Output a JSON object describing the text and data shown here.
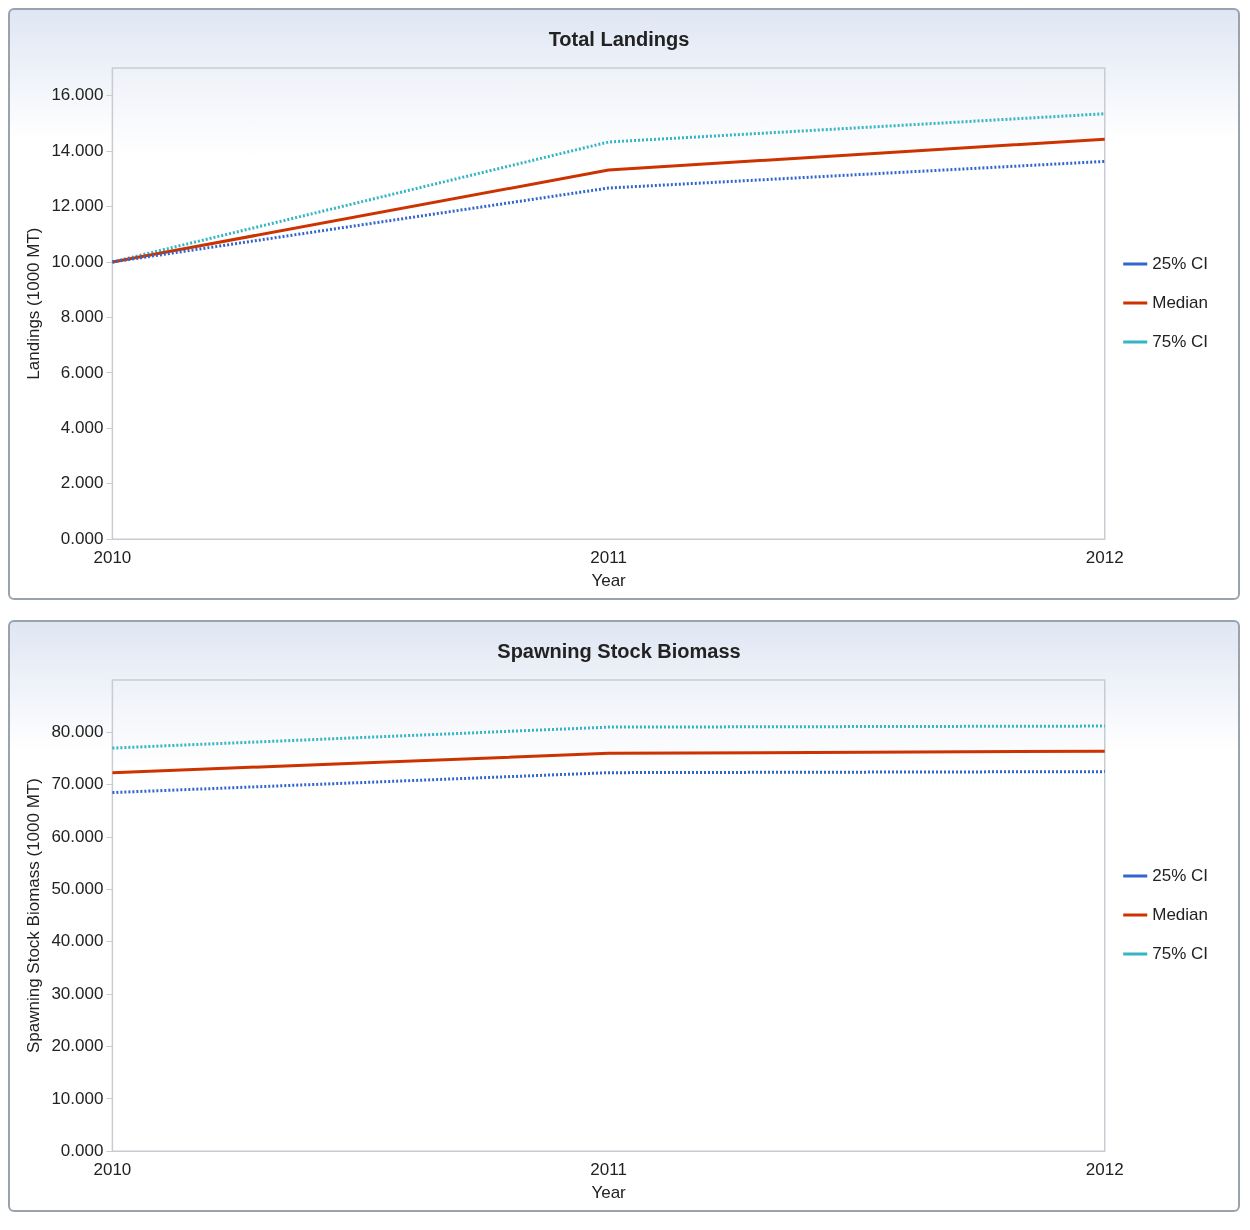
{
  "chart_data": [
    {
      "type": "line",
      "title": "Total Landings",
      "xlabel": "Year",
      "ylabel": "Landings (1000 MT)",
      "categories": [
        "2010",
        "2011",
        "2012"
      ],
      "series": [
        {
          "name": "25% CI",
          "color": "#3366cc",
          "line_style": "dotted",
          "values": [
            10.0,
            12.67,
            13.63
          ]
        },
        {
          "name": "Median",
          "color": "#cc3300",
          "line_style": "solid",
          "values": [
            10.0,
            13.32,
            14.43
          ]
        },
        {
          "name": "75% CI",
          "color": "#33b5c4",
          "line_style": "dotted",
          "values": [
            10.0,
            14.33,
            15.35
          ]
        }
      ],
      "ylim": [
        0,
        17
      ],
      "yticks": [
        {
          "value": 0,
          "label": "0.000"
        },
        {
          "value": 2,
          "label": "2.000"
        },
        {
          "value": 4,
          "label": "4.000"
        },
        {
          "value": 6,
          "label": "6.000"
        },
        {
          "value": 8,
          "label": "8.000"
        },
        {
          "value": 10,
          "label": "10.000"
        },
        {
          "value": 12,
          "label": "12.000"
        },
        {
          "value": 14,
          "label": "14.000"
        },
        {
          "value": 16,
          "label": "16.000"
        }
      ],
      "grid": false,
      "legend": "right",
      "marker": "none"
    },
    {
      "type": "line",
      "title": "Spawning Stock Biomass",
      "xlabel": "Year",
      "ylabel": "Spawning Stock Biomass (1000 MT)",
      "categories": [
        "2010",
        "2011",
        "2012"
      ],
      "series": [
        {
          "name": "25% CI",
          "color": "#3366cc",
          "line_style": "dotted",
          "values": [
            68.5,
            72.3,
            72.5
          ]
        },
        {
          "name": "Median",
          "color": "#cc3300",
          "line_style": "solid",
          "values": [
            72.3,
            76.0,
            76.4
          ]
        },
        {
          "name": "75% CI",
          "color": "#33b5c4",
          "line_style": "dotted",
          "values": [
            77.0,
            81.0,
            81.2
          ]
        }
      ],
      "ylim": [
        0,
        90
      ],
      "yticks": [
        {
          "value": 0,
          "label": "0.000"
        },
        {
          "value": 10,
          "label": "10.000"
        },
        {
          "value": 20,
          "label": "20.000"
        },
        {
          "value": 30,
          "label": "30.000"
        },
        {
          "value": 40,
          "label": "40.000"
        },
        {
          "value": 50,
          "label": "50.000"
        },
        {
          "value": 60,
          "label": "60.000"
        },
        {
          "value": 70,
          "label": "70.000"
        },
        {
          "value": 80,
          "label": "80.000"
        }
      ],
      "grid": false,
      "legend": "right",
      "marker": "none"
    }
  ]
}
